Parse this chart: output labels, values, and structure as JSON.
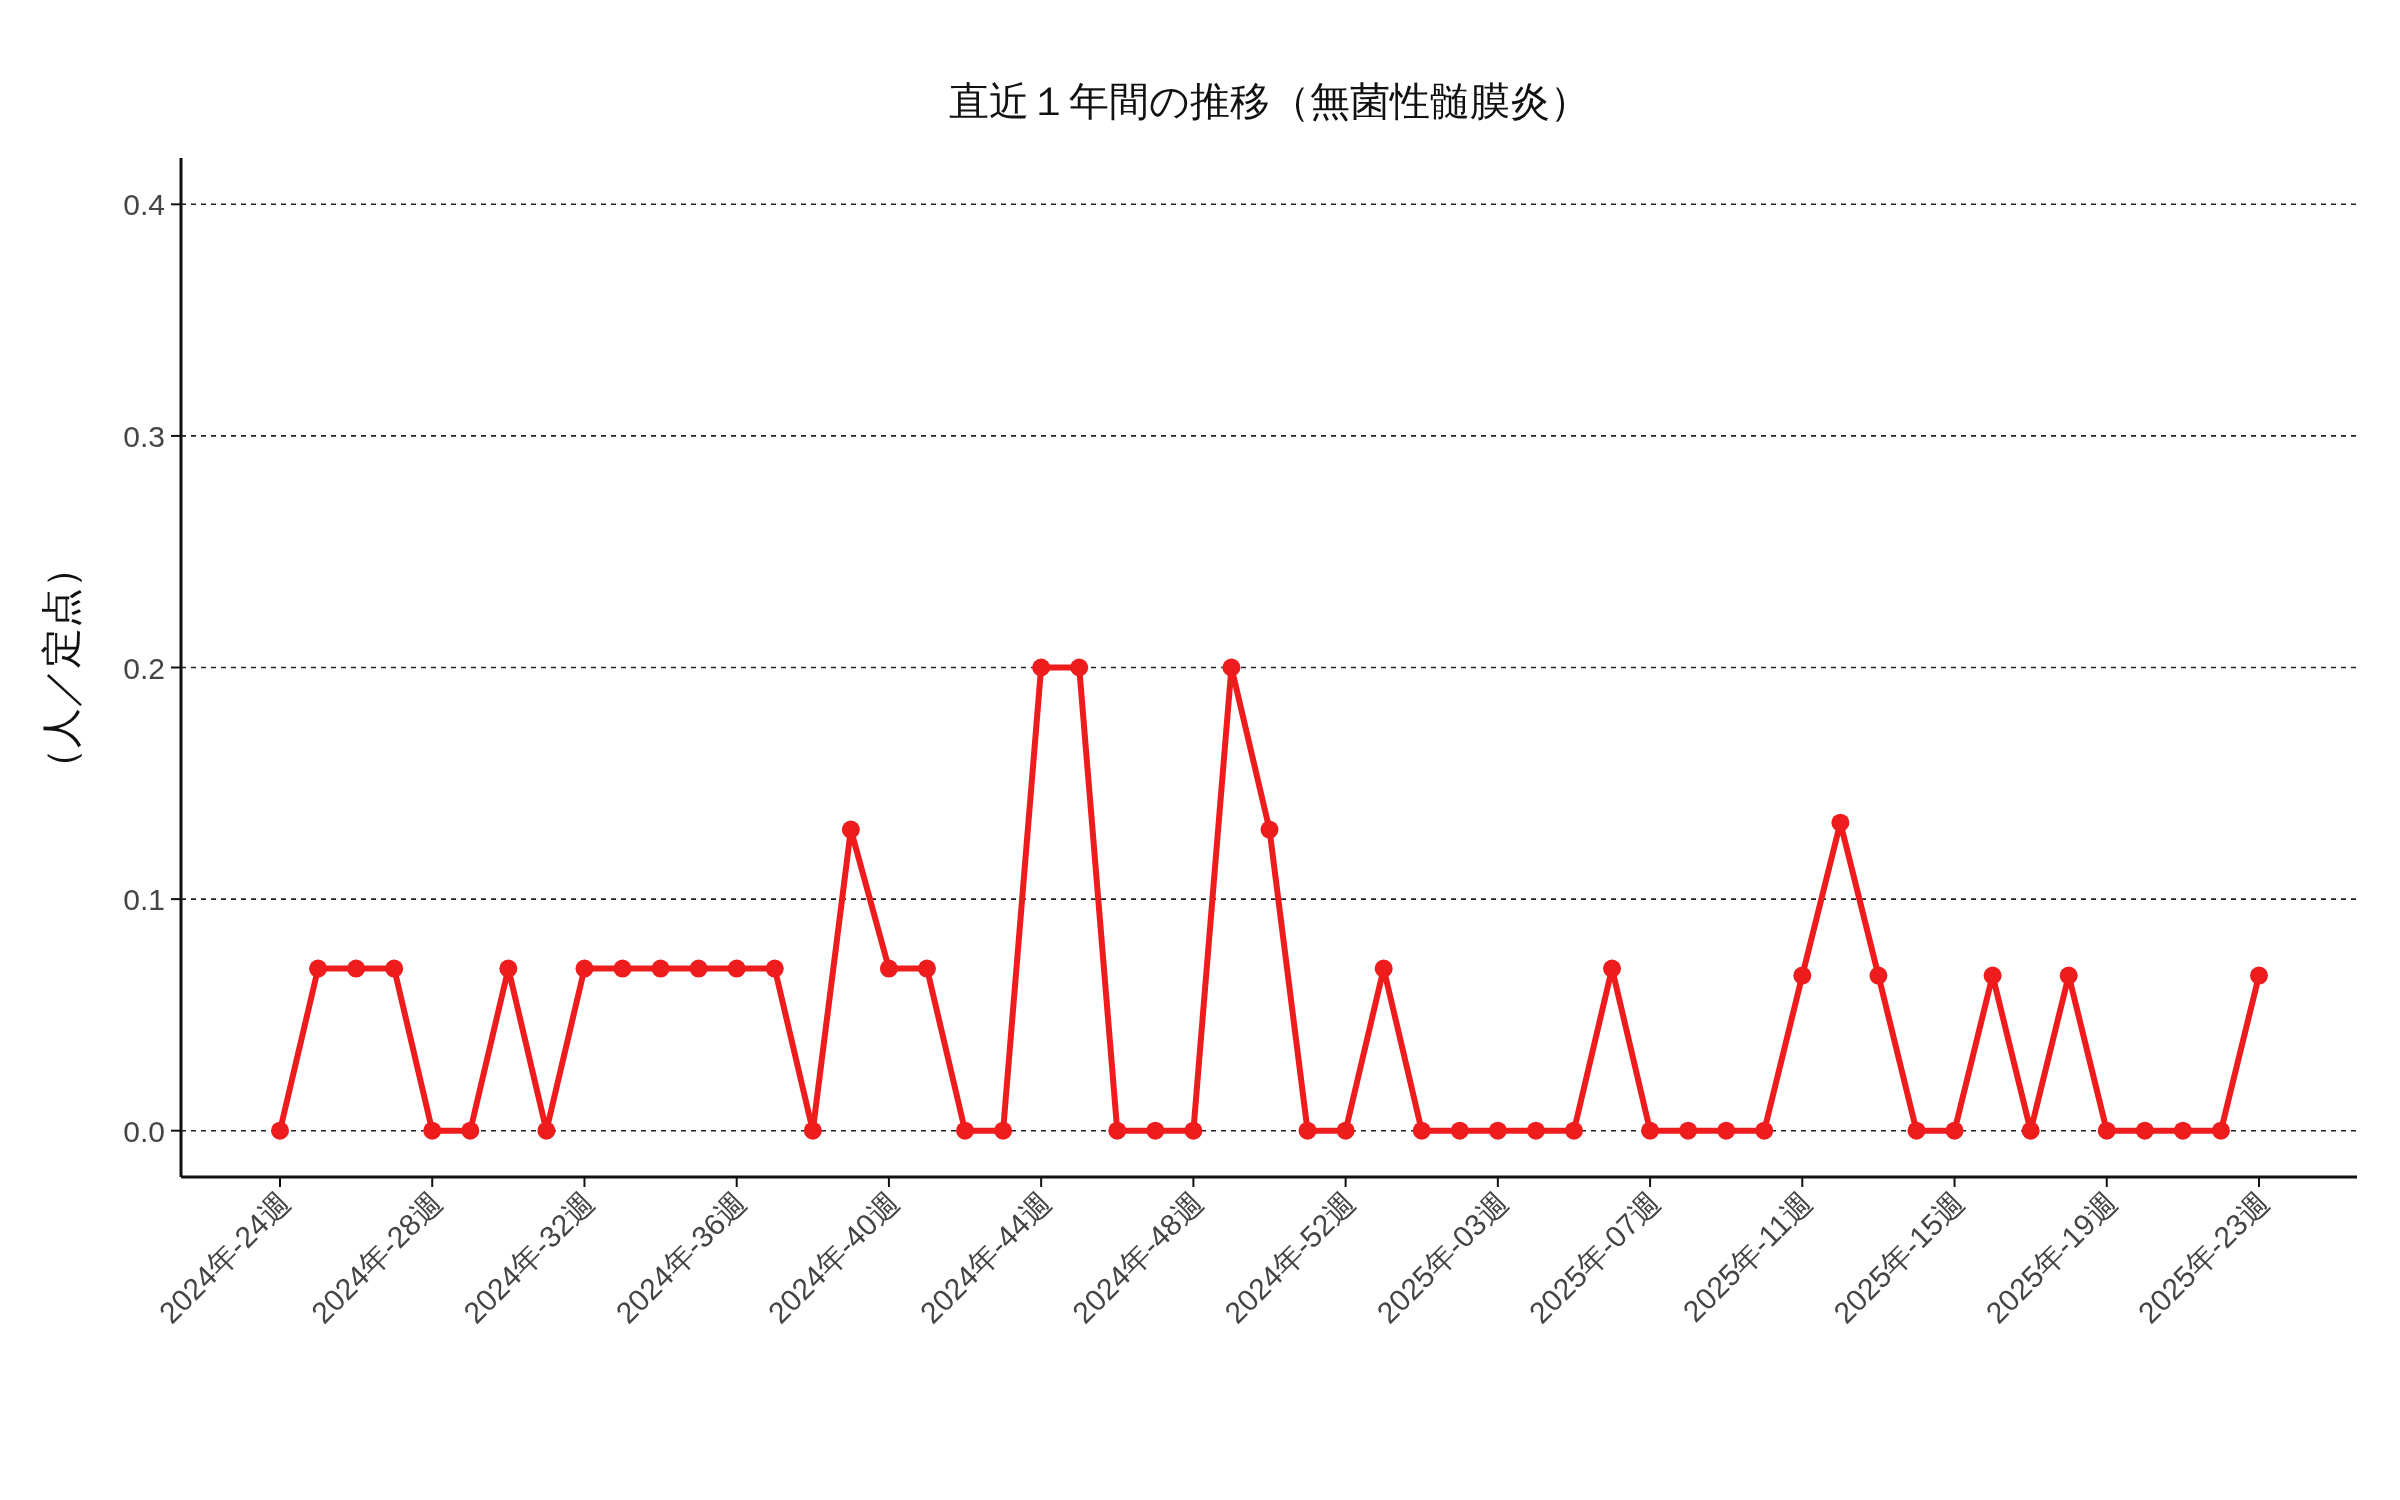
{
  "chart_data": {
    "type": "line",
    "title": "直近１年間の推移（無菌性髄膜炎）",
    "ylabel": "（人／定点）",
    "categories": [
      "2024年-24週",
      null,
      null,
      null,
      "2024年-28週",
      null,
      null,
      null,
      "2024年-32週",
      null,
      null,
      null,
      "2024年-36週",
      null,
      null,
      null,
      "2024年-40週",
      null,
      null,
      null,
      "2024年-44週",
      null,
      null,
      null,
      "2024年-48週",
      null,
      null,
      null,
      "2024年-52週",
      null,
      null,
      null,
      "2025年-03週",
      null,
      null,
      null,
      "2025年-07週",
      null,
      null,
      null,
      "2025年-11週",
      null,
      null,
      null,
      "2025年-15週",
      null,
      null,
      null,
      "2025年-19週",
      null,
      null,
      null,
      "2025年-23週"
    ],
    "series": [
      {
        "color": "#ee1c1c",
        "values": [
          0,
          0.07,
          0.07,
          0.07,
          0,
          0,
          0.07,
          0,
          0.07,
          0.07,
          0.07,
          0.07,
          0.07,
          0.07,
          0,
          0.13,
          0.07,
          0.07,
          0,
          0,
          0.2,
          0.2,
          0,
          0,
          0,
          0.2,
          0.13,
          0,
          0,
          0.07,
          0,
          0,
          0,
          0,
          0,
          0.07,
          0,
          0,
          0,
          0,
          0.067,
          0.133,
          0.067,
          0,
          0,
          0.067,
          0,
          0.067,
          0,
          0,
          0,
          0,
          0.067
        ]
      }
    ],
    "ylim": [
      -0.02,
      0.42
    ],
    "yticks": [
      {
        "value": 0,
        "label": "0.0"
      },
      0.1,
      0.2,
      0.3,
      0.4
    ],
    "grid": "y",
    "marker": "circle",
    "line_style": "solid"
  }
}
